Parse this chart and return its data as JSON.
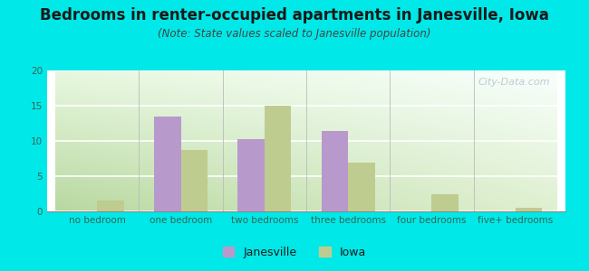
{
  "title": "Bedrooms in renter-occupied apartments in Janesville, Iowa",
  "subtitle": "(Note: State values scaled to Janesville population)",
  "categories": [
    "no bedroom",
    "one bedroom",
    "two bedrooms",
    "three bedrooms",
    "four bedrooms",
    "five+ bedrooms"
  ],
  "janesville": [
    0,
    13.4,
    10.3,
    11.4,
    0,
    0
  ],
  "iowa": [
    1.5,
    8.7,
    15.0,
    6.9,
    2.4,
    0.5
  ],
  "janesville_color": "#b899cc",
  "iowa_color": "#bfcc8f",
  "bar_width": 0.32,
  "ylim": [
    0,
    20
  ],
  "yticks": [
    0,
    5,
    10,
    15,
    20
  ],
  "bg_color": "#00e8e8",
  "grad_topleft": "#f0fae8",
  "grad_topright": "#ffffff",
  "grad_bottomleft": "#c8e8aa",
  "grad_bottomright": "#e8f5d8",
  "watermark": "City-Data.com",
  "legend_janesville": "Janesville",
  "legend_iowa": "Iowa",
  "title_fontsize": 12,
  "subtitle_fontsize": 8.5,
  "tick_fontsize": 7.5,
  "legend_fontsize": 9
}
